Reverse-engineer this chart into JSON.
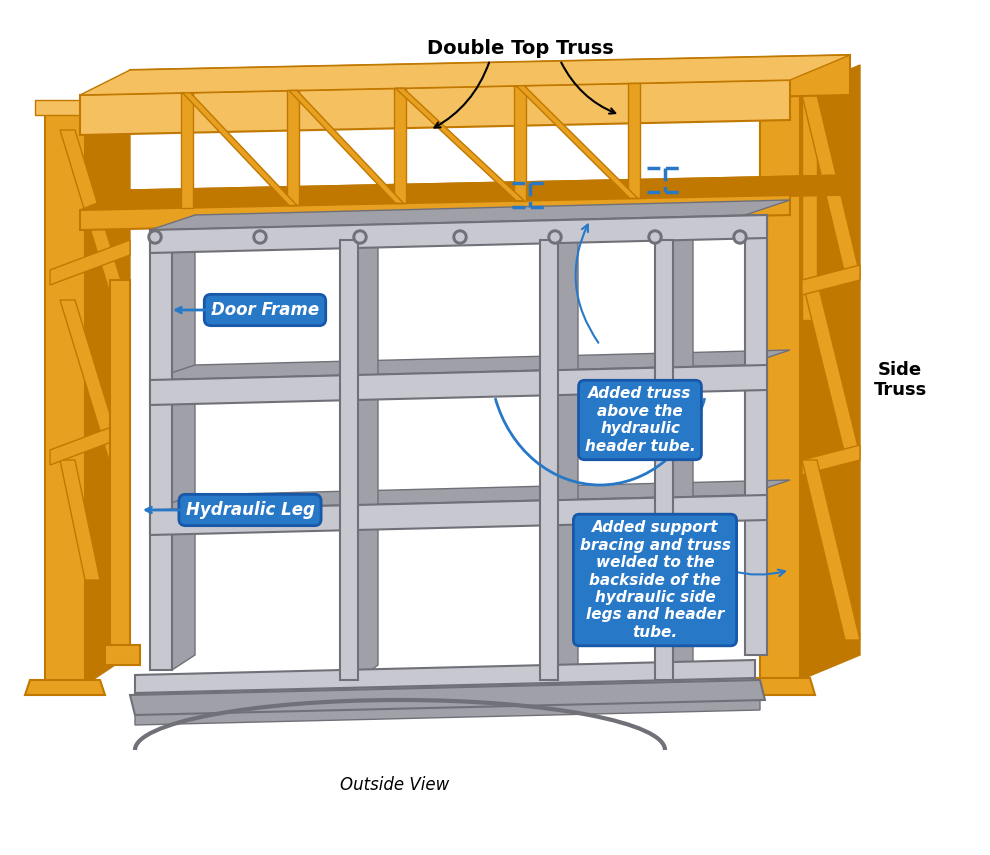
{
  "bg_color": "#ffffff",
  "orange": "#E8A020",
  "orange_dark": "#C07800",
  "orange_light": "#F5C060",
  "gray": "#A0A0A8",
  "gray_dark": "#707078",
  "gray_light": "#C8C8D0",
  "blue_label": "#2878C8",
  "blue_label_dark": "#1858A8",
  "label_text_color": "#ffffff",
  "arrow_color": "#2878C8",
  "black": "#000000",
  "title_text": "Double Top Truss",
  "side_truss_text": "Side\nTruss",
  "outside_view_text": "Outside View",
  "door_frame_text": "Door Frame",
  "hydraulic_leg_text": "Hydraulic Leg",
  "added_truss_text": "Added truss\nabove the\nhydraulic\nheader tube.",
  "added_support_text": "Added support\nbracing and truss\nwelded to the\nbackside of the\nhydraulic side\nlegs and header\ntube.",
  "figsize": [
    9.9,
    8.55
  ],
  "dpi": 100
}
